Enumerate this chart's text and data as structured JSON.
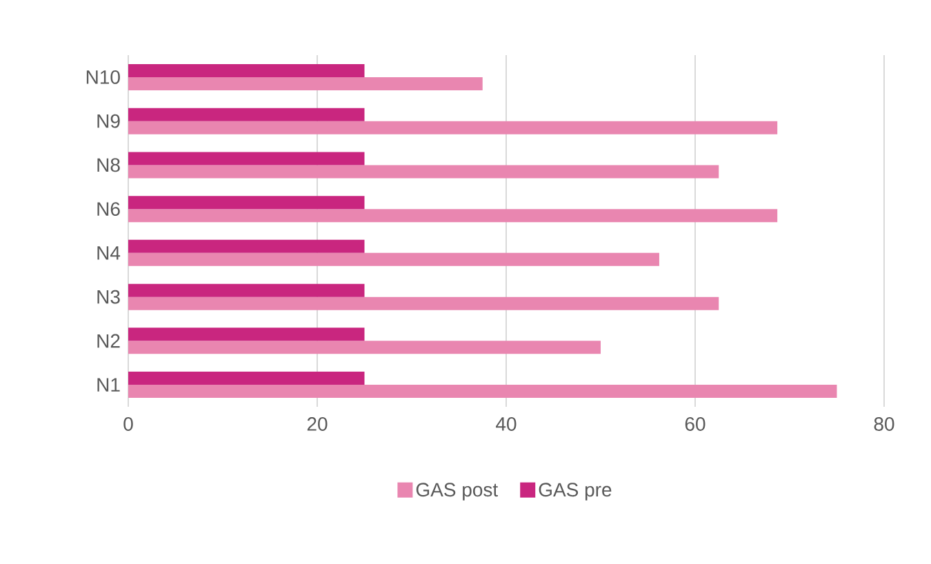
{
  "chart_data": {
    "type": "bar",
    "orientation": "horizontal",
    "categories": [
      "N10",
      "N9",
      "N8",
      "N6",
      "N4",
      "N3",
      "N2",
      "N1"
    ],
    "series": [
      {
        "name": "GAS post",
        "color": "#e986b0",
        "values": [
          37.5,
          68.7,
          62.5,
          68.7,
          56.2,
          62.5,
          50,
          75
        ]
      },
      {
        "name": "GAS pre",
        "color": "#c9267f",
        "values": [
          25,
          25,
          25,
          25,
          25,
          25,
          25,
          25
        ]
      }
    ],
    "xlim": [
      0,
      80
    ],
    "xticks": [
      0,
      20,
      40,
      60,
      80
    ],
    "grid": "x",
    "legend": "bottom"
  }
}
